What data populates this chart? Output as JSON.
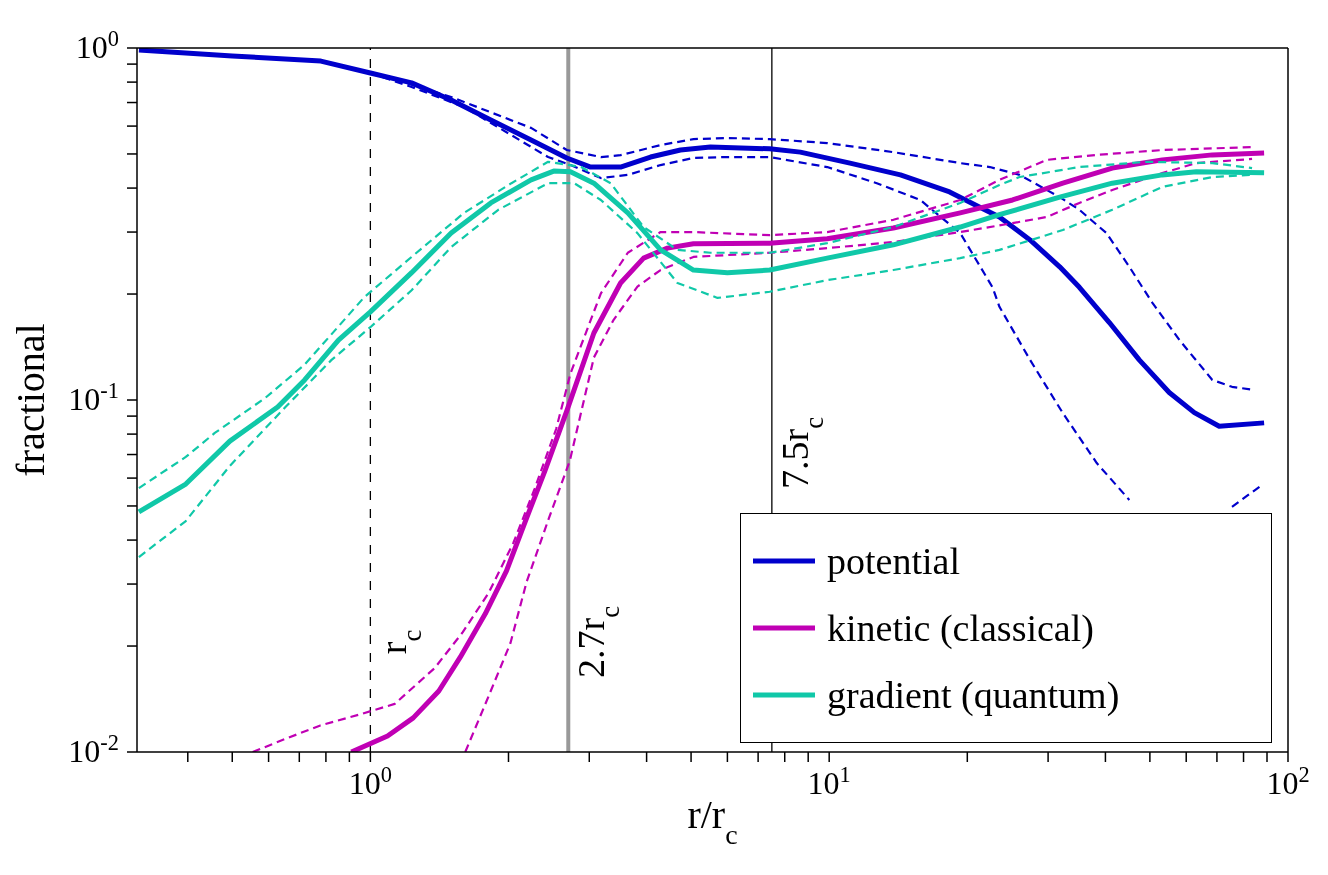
{
  "chart_data": {
    "type": "line",
    "xlabel": "r/r$_{c}$",
    "ylabel": "fractional",
    "log": "xy",
    "legend": "bottom right",
    "marker": "none",
    "xlim": [
      0.31,
      100
    ],
    "ylim": [
      0.01,
      1
    ],
    "xticks": [
      {
        "value": 0.4,
        "label": null
      },
      {
        "value": 0.5,
        "label": null
      },
      {
        "value": 0.6,
        "label": null
      },
      {
        "value": 0.7,
        "label": null
      },
      {
        "value": 0.8,
        "label": null
      },
      {
        "value": 0.9,
        "label": null
      },
      {
        "value": 1,
        "label": "10$^{0}$"
      },
      {
        "value": 2,
        "label": null
      },
      {
        "value": 3,
        "label": null
      },
      {
        "value": 4,
        "label": null
      },
      {
        "value": 5,
        "label": null
      },
      {
        "value": 6,
        "label": null
      },
      {
        "value": 7,
        "label": null
      },
      {
        "value": 8,
        "label": null
      },
      {
        "value": 9,
        "label": null
      },
      {
        "value": 10,
        "label": "10$^{1}$"
      },
      {
        "value": 20,
        "label": null
      },
      {
        "value": 30,
        "label": null
      },
      {
        "value": 40,
        "label": null
      },
      {
        "value": 50,
        "label": null
      },
      {
        "value": 60,
        "label": null
      },
      {
        "value": 70,
        "label": null
      },
      {
        "value": 80,
        "label": null
      },
      {
        "value": 90,
        "label": null
      },
      {
        "value": 100,
        "label": "10$^{2}$"
      }
    ],
    "yticks": [
      {
        "value": 0.01,
        "label": "10$^{-2}$"
      },
      {
        "value": 0.02,
        "label": null
      },
      {
        "value": 0.03,
        "label": null
      },
      {
        "value": 0.04,
        "label": null
      },
      {
        "value": 0.05,
        "label": null
      },
      {
        "value": 0.06,
        "label": null
      },
      {
        "value": 0.07,
        "label": null
      },
      {
        "value": 0.08,
        "label": null
      },
      {
        "value": 0.09,
        "label": null
      },
      {
        "value": 0.1,
        "label": "10$^{-1}$"
      },
      {
        "value": 0.2,
        "label": null
      },
      {
        "value": 0.3,
        "label": null
      },
      {
        "value": 0.4,
        "label": null
      },
      {
        "value": 0.5,
        "label": null
      },
      {
        "value": 0.6,
        "label": null
      },
      {
        "value": 0.7,
        "label": null
      },
      {
        "value": 0.8,
        "label": null
      },
      {
        "value": 0.9,
        "label": null
      },
      {
        "value": 1,
        "label": "10$^{0}$"
      }
    ],
    "ref_lines": [
      {
        "axis": "x",
        "value": 1,
        "label": "r$_{c}$",
        "color": "#000000",
        "line_style": "dashed"
      },
      {
        "axis": "x",
        "value": 2.7,
        "label": "2.7r$_{c}$",
        "color": "#999999",
        "line_style": "solid"
      },
      {
        "axis": "x",
        "value": 7.5,
        "label": "7.5r$_{c}$",
        "color": "#000000",
        "line_style": "solid"
      }
    ],
    "series": [
      {
        "name": "potential",
        "color": "#0000cc",
        "line_style": "solid",
        "x": [
          0.313,
          0.5,
          0.78,
          1.0,
          1.23,
          1.5,
          1.83,
          2.24,
          2.68,
          3.02,
          3.51,
          4.08,
          4.74,
          5.51,
          7.42,
          8.65,
          11.1,
          14.3,
          18.3,
          21.3,
          23.5,
          27.4,
          31.8,
          35.1,
          40.8,
          47.4,
          55.1,
          62.5,
          70.8,
          88.7
        ],
        "values": [
          0.987,
          0.949,
          0.918,
          0.849,
          0.796,
          0.712,
          0.624,
          0.548,
          0.487,
          0.459,
          0.459,
          0.49,
          0.513,
          0.523,
          0.517,
          0.506,
          0.471,
          0.436,
          0.39,
          0.353,
          0.331,
          0.285,
          0.239,
          0.209,
          0.166,
          0.13,
          0.105,
          0.0921,
          0.0842,
          0.0861
        ]
      },
      {
        "color": "#0000cc",
        "line_style": "dashed",
        "x": [
          1.0,
          1.5,
          2.24,
          2.68,
          3.18,
          3.51,
          4.29,
          5.06,
          6.0,
          7.42,
          9.9,
          13.8,
          19.3,
          22.4,
          26.0,
          31.8,
          35.1,
          40.2,
          45.1,
          50.6,
          58.0,
          68.4,
          75.5,
          83.5
        ],
        "values": [
          0.855,
          0.726,
          0.593,
          0.513,
          0.49,
          0.496,
          0.53,
          0.551,
          0.555,
          0.551,
          0.537,
          0.506,
          0.471,
          0.459,
          0.436,
          0.377,
          0.347,
          0.298,
          0.239,
          0.189,
          0.148,
          0.114,
          0.109,
          0.107
        ]
      },
      {
        "color": "#0000cc",
        "line_style": "dashed",
        "x": [
          1.0,
          1.23,
          1.6,
          2.44,
          2.73,
          3.18,
          3.64,
          4.29,
          5.06,
          6.0,
          7.42,
          9.9,
          12.7,
          15.8,
          19.3,
          22.7,
          23.5,
          27.4,
          32.3,
          38.3,
          45.1,
          58.0,
          75.5,
          87.8
        ],
        "values": [
          0.849,
          0.775,
          0.68,
          0.49,
          0.465,
          0.427,
          0.436,
          0.465,
          0.487,
          0.49,
          0.49,
          0.459,
          0.413,
          0.37,
          0.298,
          0.209,
          0.184,
          0.13,
          0.0918,
          0.0662,
          0.052,
          null,
          0.0497,
          0.0574
        ]
      },
      {
        "name": "kinetic (classical)",
        "color": "#c000b4",
        "line_style": "solid",
        "x": [
          0.909,
          1.09,
          1.24,
          1.41,
          1.57,
          1.78,
          1.98,
          2.19,
          2.4,
          2.68,
          3.07,
          3.51,
          3.94,
          4.44,
          5.06,
          7.42,
          9.9,
          13.8,
          19.3,
          25.1,
          32.3,
          41.4,
          53.2,
          68.4,
          88.7
        ],
        "values": [
          0.01,
          0.0111,
          0.0125,
          0.0149,
          0.0186,
          0.0247,
          0.0327,
          0.0462,
          0.0628,
          0.0931,
          0.155,
          0.215,
          0.253,
          0.27,
          0.278,
          0.279,
          0.287,
          0.308,
          0.34,
          0.37,
          0.413,
          0.456,
          0.481,
          0.497,
          0.503
        ]
      },
      {
        "color": "#c000b4",
        "line_style": "dashed",
        "x": [
          0.554,
          0.653,
          0.778,
          0.951,
          1.13,
          1.38,
          1.59,
          1.81,
          2.05,
          2.28,
          2.54,
          2.73,
          3.18,
          3.64,
          4.29,
          5.06,
          7.42,
          9.9,
          13.8,
          19.3,
          23.5,
          29.8,
          38.3,
          53.2,
          83.5
        ],
        "values": [
          0.01,
          0.0109,
          0.0119,
          0.0128,
          0.0137,
          0.0173,
          0.0219,
          0.0283,
          0.0393,
          0.0559,
          0.0827,
          0.119,
          0.201,
          0.262,
          0.3,
          0.3,
          0.294,
          0.3,
          0.325,
          0.37,
          0.422,
          0.481,
          0.497,
          0.513,
          0.523
        ]
      },
      {
        "color": "#c000b4",
        "line_style": "dashed",
        "x": [
          1.61,
          1.81,
          2.02,
          2.19,
          2.45,
          2.72,
          3.07,
          3.39,
          3.82,
          4.29,
          5.06,
          7.42,
          9.9,
          13.8,
          19.3,
          25.1,
          29.8,
          35.1,
          41.4,
          53.2,
          63.1,
          83.5
        ],
        "values": [
          0.01,
          0.0144,
          0.0204,
          0.0304,
          0.0462,
          0.0671,
          0.132,
          0.169,
          0.21,
          0.234,
          0.255,
          0.262,
          0.27,
          0.281,
          0.3,
          0.318,
          0.331,
          0.363,
          0.395,
          0.441,
          0.471,
          0.484
        ]
      },
      {
        "name": "gradient (quantum)",
        "color": "#10c8a8",
        "line_style": "solid",
        "x": [
          0.313,
          0.396,
          0.494,
          0.628,
          0.719,
          0.852,
          1.0,
          1.23,
          1.5,
          1.83,
          2.24,
          2.51,
          2.73,
          3.07,
          3.64,
          4.29,
          5.06,
          6.0,
          7.42,
          9.9,
          13.8,
          19.3,
          23.5,
          31.8,
          41.4,
          53.2,
          63.1,
          88.7
        ],
        "values": [
          0.0481,
          0.0577,
          0.0764,
          0.0955,
          0.114,
          0.148,
          0.178,
          0.23,
          0.298,
          0.363,
          0.422,
          0.447,
          0.445,
          0.413,
          0.34,
          0.267,
          0.234,
          0.23,
          0.234,
          0.253,
          0.276,
          0.31,
          0.336,
          0.377,
          0.413,
          0.436,
          0.445,
          0.442
        ]
      },
      {
        "color": "#10c8a8",
        "line_style": "dashed",
        "x": [
          0.313,
          0.396,
          0.458,
          0.588,
          0.719,
          0.97,
          1.23,
          1.6,
          2.03,
          2.44,
          2.88,
          3.34,
          3.94,
          4.67,
          5.51,
          7.42,
          9.9,
          13.8,
          19.3,
          23.5,
          26.0,
          35.1,
          49.1,
          68.4,
          83.5
        ],
        "values": [
          0.0562,
          0.0689,
          0.0806,
          0.101,
          0.126,
          0.196,
          0.255,
          0.34,
          0.413,
          0.475,
          0.459,
          0.413,
          0.31,
          0.267,
          0.262,
          0.262,
          0.279,
          0.31,
          0.363,
          0.408,
          0.43,
          0.459,
          0.475,
          0.471,
          0.456
        ]
      },
      {
        "color": "#10c8a8",
        "line_style": "dashed",
        "x": [
          0.313,
          0.396,
          0.494,
          0.653,
          0.823,
          1.0,
          1.23,
          1.5,
          1.9,
          2.44,
          2.78,
          3.18,
          3.82,
          4.67,
          5.71,
          7.42,
          9.9,
          13.8,
          19.3,
          23.5,
          32.3,
          41.4,
          53.2,
          68.4,
          83.5
        ],
        "values": [
          0.0358,
          0.0453,
          0.065,
          0.0955,
          0.13,
          0.161,
          0.205,
          0.272,
          0.347,
          0.413,
          0.413,
          0.37,
          0.298,
          0.215,
          0.195,
          0.203,
          0.219,
          0.234,
          0.253,
          0.267,
          0.304,
          0.347,
          0.403,
          0.43,
          0.436
        ]
      }
    ]
  }
}
